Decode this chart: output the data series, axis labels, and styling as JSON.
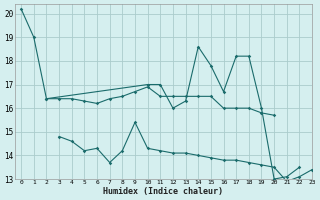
{
  "xlabel": "Humidex (Indice chaleur)",
  "xlim": [
    -0.5,
    23
  ],
  "ylim": [
    13,
    20.4
  ],
  "yticks": [
    13,
    14,
    15,
    16,
    17,
    18,
    19,
    20
  ],
  "xticks": [
    0,
    1,
    2,
    3,
    4,
    5,
    6,
    7,
    8,
    9,
    10,
    11,
    12,
    13,
    14,
    15,
    16,
    17,
    18,
    19,
    20,
    21,
    22,
    23
  ],
  "bg_color": "#d5efef",
  "grid_color": "#aacccc",
  "line_color": "#1a6b6b",
  "line1_x": [
    0,
    1,
    2,
    10,
    11,
    12,
    13,
    14,
    15,
    16,
    17,
    18,
    19,
    20,
    21,
    22
  ],
  "line1_y": [
    20.2,
    19.0,
    16.4,
    17.0,
    17.0,
    16.0,
    16.3,
    18.6,
    17.8,
    16.7,
    18.2,
    18.2,
    16.0,
    13.0,
    13.1,
    13.5
  ],
  "line2_x": [
    2,
    3,
    4,
    5,
    6,
    7,
    8,
    9,
    10,
    11,
    12,
    13,
    14,
    15,
    16,
    17,
    18,
    19,
    20
  ],
  "line2_y": [
    16.4,
    16.4,
    16.4,
    16.3,
    16.2,
    16.4,
    16.5,
    16.7,
    16.9,
    16.5,
    16.5,
    16.5,
    16.5,
    16.5,
    16.0,
    16.0,
    16.0,
    15.8,
    15.7
  ],
  "line3_x": [
    3,
    4,
    5,
    6,
    7,
    8,
    9,
    10,
    11,
    12,
    13,
    14,
    15,
    16,
    17,
    18,
    19,
    20,
    21,
    22,
    23
  ],
  "line3_y": [
    14.8,
    14.6,
    14.2,
    14.3,
    13.7,
    14.2,
    15.4,
    14.3,
    14.2,
    14.1,
    14.1,
    14.0,
    13.9,
    13.8,
    13.8,
    13.7,
    13.6,
    13.5,
    12.9,
    13.1,
    13.4
  ]
}
